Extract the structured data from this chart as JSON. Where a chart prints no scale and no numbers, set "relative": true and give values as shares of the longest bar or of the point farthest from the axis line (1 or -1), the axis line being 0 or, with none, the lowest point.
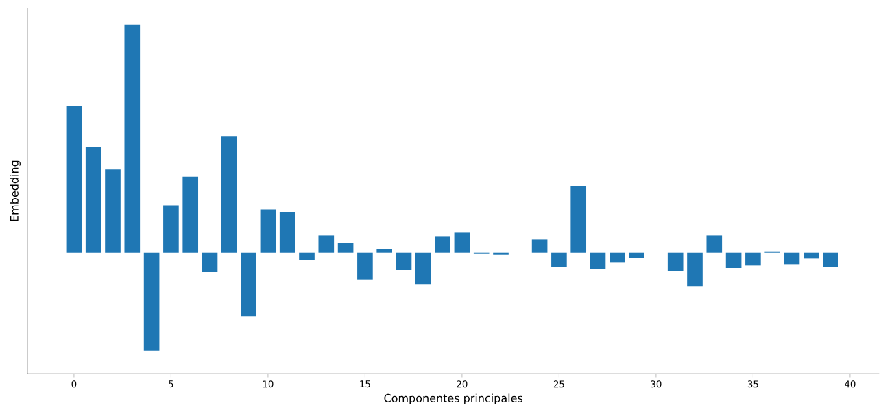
{
  "chart_data": {
    "type": "bar",
    "xlabel": "Componentes principales",
    "ylabel": "Embedding",
    "relative": true,
    "x": [
      0,
      1,
      2,
      3,
      4,
      5,
      6,
      7,
      8,
      9,
      10,
      11,
      12,
      13,
      14,
      15,
      16,
      17,
      18,
      19,
      20,
      21,
      22,
      23,
      24,
      25,
      26,
      27,
      28,
      29,
      30,
      31,
      32,
      33,
      34,
      35,
      36,
      37,
      38,
      39
    ],
    "values": [
      0.643,
      0.465,
      0.365,
      1,
      -0.43,
      0.208,
      0.333,
      -0.085,
      0.509,
      -0.278,
      0.19,
      0.178,
      -0.032,
      0.076,
      0.044,
      -0.117,
      0.015,
      -0.076,
      -0.14,
      0.07,
      0.088,
      -0.003,
      -0.009,
      0,
      0.058,
      -0.064,
      0.292,
      -0.07,
      -0.041,
      -0.023,
      0,
      -0.079,
      -0.146,
      0.076,
      -0.067,
      -0.056,
      0.006,
      -0.05,
      -0.026,
      -0.064
    ],
    "color": "#1f77b4",
    "xlim": [
      -2.4,
      41.5
    ],
    "xticks": [
      0,
      5,
      10,
      15,
      20,
      25,
      30,
      35,
      40
    ],
    "tick_labels": "x",
    "grid": false
  }
}
